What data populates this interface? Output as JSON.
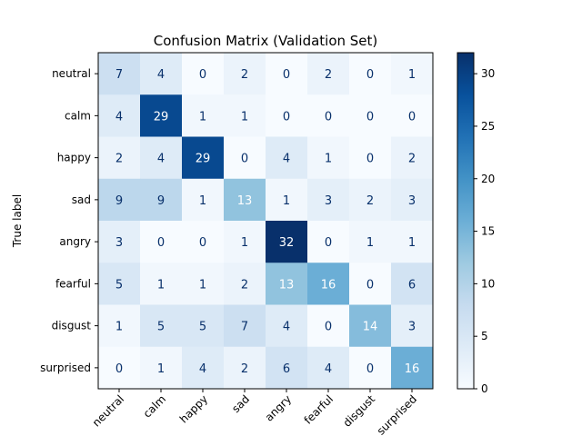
{
  "chart_data": {
    "type": "heatmap",
    "title": "Confusion Matrix (Validation Set)",
    "xlabel": "",
    "ylabel": "True label",
    "x_categories": [
      "neutral",
      "calm",
      "happy",
      "sad",
      "angry",
      "fearful",
      "disgust",
      "surprised"
    ],
    "y_categories": [
      "neutral",
      "calm",
      "happy",
      "sad",
      "angry",
      "fearful",
      "disgust",
      "surprised"
    ],
    "values": [
      [
        7,
        4,
        0,
        2,
        0,
        2,
        0,
        1
      ],
      [
        4,
        29,
        1,
        1,
        0,
        0,
        0,
        0
      ],
      [
        2,
        4,
        29,
        0,
        4,
        1,
        0,
        2
      ],
      [
        9,
        9,
        1,
        13,
        1,
        3,
        2,
        3
      ],
      [
        3,
        0,
        0,
        1,
        32,
        0,
        1,
        1
      ],
      [
        5,
        1,
        1,
        2,
        13,
        16,
        0,
        6
      ],
      [
        1,
        5,
        5,
        7,
        4,
        0,
        14,
        3
      ],
      [
        0,
        1,
        4,
        2,
        6,
        4,
        0,
        16
      ]
    ],
    "colormap": "Blues",
    "vmin": 0,
    "vmax": 32,
    "colorbar_ticks": [
      0,
      5,
      10,
      15,
      20,
      25,
      30
    ],
    "grid": false,
    "legend": "colorbar-right"
  }
}
